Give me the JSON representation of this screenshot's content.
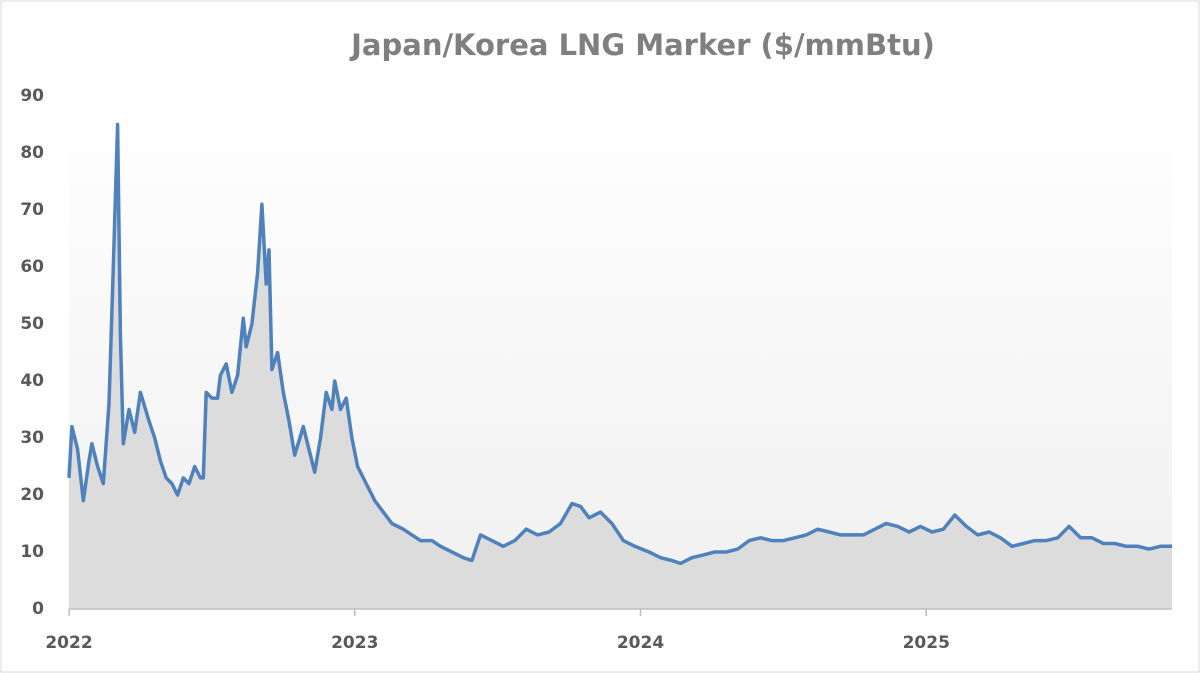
{
  "chart_data": {
    "type": "line",
    "title": "Japan/Korea LNG Marker ($/mmBtu)",
    "x": [
      2022.0,
      2022.01,
      2022.03,
      2022.05,
      2022.07,
      2022.08,
      2022.1,
      2022.12,
      2022.14,
      2022.155,
      2022.17,
      2022.18,
      2022.19,
      2022.21,
      2022.23,
      2022.25,
      2022.28,
      2022.3,
      2022.32,
      2022.34,
      2022.36,
      2022.38,
      2022.4,
      2022.42,
      2022.44,
      2022.46,
      2022.47,
      2022.48,
      2022.5,
      2022.52,
      2022.53,
      2022.55,
      2022.57,
      2022.59,
      2022.61,
      2022.62,
      2022.64,
      2022.66,
      2022.675,
      2022.69,
      2022.7,
      2022.71,
      2022.73,
      2022.75,
      2022.77,
      2022.79,
      2022.82,
      2022.84,
      2022.86,
      2022.88,
      2022.9,
      2022.92,
      2022.93,
      2022.95,
      2022.97,
      2022.99,
      2023.01,
      2023.04,
      2023.07,
      2023.1,
      2023.13,
      2023.17,
      2023.2,
      2023.23,
      2023.27,
      2023.3,
      2023.34,
      2023.38,
      2023.41,
      2023.44,
      2023.48,
      2023.52,
      2023.56,
      2023.6,
      2023.64,
      2023.68,
      2023.72,
      2023.76,
      2023.79,
      2023.82,
      2023.86,
      2023.9,
      2023.94,
      2023.98,
      2024.03,
      2024.07,
      2024.11,
      2024.14,
      2024.18,
      2024.22,
      2024.26,
      2024.3,
      2024.34,
      2024.38,
      2024.42,
      2024.46,
      2024.5,
      2024.54,
      2024.58,
      2024.62,
      2024.66,
      2024.7,
      2024.74,
      2024.78,
      2024.82,
      2024.86,
      2024.9,
      2024.94,
      2024.98,
      2025.02,
      2025.06,
      2025.1,
      2025.14,
      2025.18,
      2025.22,
      2025.26,
      2025.3,
      2025.34,
      2025.38,
      2025.42,
      2025.46,
      2025.5,
      2025.54,
      2025.58,
      2025.62,
      2025.66,
      2025.7,
      2025.74,
      2025.78,
      2025.82,
      2025.86
    ],
    "values": [
      23,
      32,
      28,
      19,
      26,
      29,
      25,
      22,
      36,
      60,
      85,
      48,
      29,
      35,
      31,
      38,
      33,
      30,
      26,
      23,
      22,
      20,
      23,
      22,
      25,
      23,
      23,
      38,
      37,
      37,
      41,
      43,
      38,
      41,
      51,
      46,
      50,
      59,
      71,
      57,
      63,
      42,
      45,
      38,
      33,
      27,
      32,
      28,
      24,
      30,
      38,
      35,
      40,
      35,
      37,
      30,
      25,
      22,
      19,
      17,
      15,
      14,
      13,
      12,
      12,
      11,
      10,
      9,
      8.5,
      13,
      12,
      11,
      12,
      14,
      13,
      13.5,
      15,
      18.5,
      18,
      16,
      17,
      15,
      12,
      11,
      10,
      9,
      8.5,
      8,
      9,
      9.5,
      10,
      10,
      10.5,
      12,
      12.5,
      12,
      12,
      12.5,
      13,
      14,
      13.5,
      13,
      13,
      13,
      14,
      15,
      14.5,
      13.5,
      14.5,
      13.5,
      14,
      16.5,
      14.5,
      13,
      13.5,
      12.5,
      11,
      11.5,
      12,
      12,
      12.5,
      14.5,
      12.5,
      12.5,
      11.5,
      11.5,
      11,
      11,
      10.5,
      11,
      11
    ],
    "color": "#4f81bd",
    "area_color": "#dcdcdc",
    "xlim": [
      2022,
      2025.86
    ],
    "xticks": [
      2022,
      2023,
      2024,
      2025
    ],
    "ylim": [
      0,
      90
    ],
    "yticks": [
      0,
      10,
      20,
      30,
      40,
      50,
      60,
      70,
      80,
      90
    ],
    "grid": false
  }
}
